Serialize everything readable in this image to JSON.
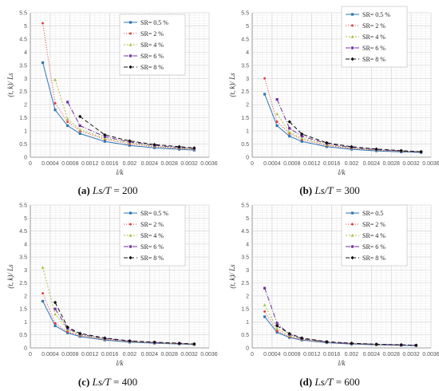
{
  "chart_data": [
    {
      "type": "line",
      "title": "",
      "caption": {
        "label": "(a)",
        "var": "Ls/T",
        "value": "= 200"
      },
      "xlabel": "l/k",
      "ylabel": "(t, k)/ Ls",
      "xlim": [
        0,
        0.0036
      ],
      "ylim": [
        0,
        5.5
      ],
      "xticks": [
        "0",
        "0.0004",
        "0.0008",
        "0.0012",
        "0.0016",
        "0.002",
        "0.0024",
        "0.0028",
        "0.0032",
        "0.0036"
      ],
      "yticks": [
        "0",
        "0.5",
        "1",
        "1.5",
        "2",
        "2.5",
        "3",
        "3.5",
        "4",
        "4.5",
        "5",
        "5.5"
      ],
      "series": [
        {
          "name": "SR= 0.5 %",
          "color": "#2e75b6",
          "dash": "",
          "marker": "square",
          "x": [
            0.00025,
            0.0005,
            0.00075,
            0.001,
            0.0015,
            0.002,
            0.0025,
            0.003,
            0.0033
          ],
          "y": [
            3.6,
            1.8,
            1.2,
            0.9,
            0.6,
            0.45,
            0.36,
            0.3,
            0.27
          ]
        },
        {
          "name": "SR= 2 %",
          "color": "#e04040",
          "dash": "1,2",
          "marker": "dot",
          "x": [
            0.00025,
            0.0005,
            0.00075,
            0.001,
            0.0015,
            0.002,
            0.0025,
            0.003,
            0.0033
          ],
          "y": [
            5.1,
            2.05,
            1.35,
            1.0,
            0.68,
            0.5,
            0.4,
            0.33,
            0.3
          ]
        },
        {
          "name": "SR= 4 %",
          "color": "#a6c23e",
          "dash": "2,2",
          "marker": "triangle",
          "x": [
            0.0005,
            0.00075,
            0.001,
            0.0015,
            0.002,
            0.0025,
            0.003,
            0.0033
          ],
          "y": [
            2.95,
            1.45,
            1.05,
            0.72,
            0.55,
            0.42,
            0.35,
            0.32
          ]
        },
        {
          "name": "SR= 6 %",
          "color": "#7030a0",
          "dash": "6,2,1,2",
          "marker": "square",
          "x": [
            0.00075,
            0.001,
            0.0015,
            0.002,
            0.0025,
            0.003,
            0.0033
          ],
          "y": [
            2.1,
            1.2,
            0.78,
            0.58,
            0.45,
            0.37,
            0.33
          ]
        },
        {
          "name": "SR= 8 %",
          "color": "#111111",
          "dash": "5,3",
          "marker": "diamond",
          "x": [
            0.001,
            0.0015,
            0.002,
            0.0025,
            0.003,
            0.0033
          ],
          "y": [
            1.55,
            0.85,
            0.62,
            0.48,
            0.4,
            0.35
          ]
        }
      ]
    },
    {
      "type": "line",
      "title": "",
      "caption": {
        "label": "(b)",
        "var": "Ls/T",
        "value": "= 300"
      },
      "xlabel": "l/k",
      "ylabel": "(t, k)/ Ls",
      "xlim": [
        0,
        0.0036
      ],
      "ylim": [
        0,
        5.5
      ],
      "xticks": [
        "0",
        "0.0004",
        "0.0008",
        "0.0012",
        "0.0016",
        "0.002",
        "0.0024",
        "0.0028",
        "0.0032",
        "0.0036"
      ],
      "yticks": [
        "0",
        "0.5",
        "1",
        "1.5",
        "2",
        "2.5",
        "3",
        "3.5",
        "4",
        "4.5",
        "5",
        "5.5"
      ],
      "series": [
        {
          "name": "SR= 0.5 %",
          "color": "#2e75b6",
          "dash": "",
          "marker": "square",
          "x": [
            0.00025,
            0.0005,
            0.00075,
            0.001,
            0.0015,
            0.002,
            0.0025,
            0.003,
            0.0034
          ],
          "y": [
            2.4,
            1.2,
            0.8,
            0.6,
            0.4,
            0.3,
            0.24,
            0.2,
            0.18
          ]
        },
        {
          "name": "SR= 2 %",
          "color": "#e04040",
          "dash": "1,2",
          "marker": "dot",
          "x": [
            0.00025,
            0.0005,
            0.00075,
            0.001,
            0.0015,
            0.002,
            0.0025,
            0.003,
            0.0034
          ],
          "y": [
            3.0,
            1.35,
            0.9,
            0.67,
            0.45,
            0.33,
            0.27,
            0.22,
            0.19
          ]
        },
        {
          "name": "SR= 4 %",
          "color": "#a6c23e",
          "dash": "2,2",
          "marker": "triangle",
          "x": [
            0.0005,
            0.00075,
            0.001,
            0.0015,
            0.002,
            0.0025,
            0.003,
            0.0034
          ],
          "y": [
            1.65,
            0.95,
            0.72,
            0.48,
            0.35,
            0.28,
            0.23,
            0.2
          ]
        },
        {
          "name": "SR= 6 %",
          "color": "#7030a0",
          "dash": "6,2,1,2",
          "marker": "square",
          "x": [
            0.0005,
            0.00075,
            0.001,
            0.0015,
            0.002,
            0.0025,
            0.003,
            0.0034
          ],
          "y": [
            2.2,
            1.1,
            0.8,
            0.52,
            0.37,
            0.29,
            0.24,
            0.2
          ]
        },
        {
          "name": "SR= 8 %",
          "color": "#111111",
          "dash": "5,3",
          "marker": "diamond",
          "x": [
            0.00075,
            0.001,
            0.0015,
            0.002,
            0.0025,
            0.003,
            0.0034
          ],
          "y": [
            1.35,
            0.88,
            0.55,
            0.4,
            0.31,
            0.25,
            0.21
          ]
        }
      ]
    },
    {
      "type": "line",
      "title": "",
      "caption": {
        "label": "(c)",
        "var": "Ls/T",
        "value": "= 400"
      },
      "xlabel": "l/k",
      "ylabel": "(t, k)/ Ls",
      "xlim": [
        0,
        0.0036
      ],
      "ylim": [
        0,
        5.5
      ],
      "xticks": [
        "0",
        "0.0004",
        "0.0008",
        "0.0012",
        "0.0016",
        "0.002",
        "0.0024",
        "0.0028",
        "0.0032",
        "0.0036"
      ],
      "yticks": [
        "0",
        "0.5",
        "1",
        "1.5",
        "2",
        "2.5",
        "3",
        "3.5",
        "4",
        "4.5",
        "5",
        "5.5"
      ],
      "series": [
        {
          "name": "SR= 0.5 %",
          "color": "#2e75b6",
          "dash": "",
          "marker": "square",
          "x": [
            0.00025,
            0.0005,
            0.00075,
            0.001,
            0.0015,
            0.002,
            0.0025,
            0.003,
            0.0033
          ],
          "y": [
            1.8,
            0.85,
            0.58,
            0.44,
            0.3,
            0.22,
            0.18,
            0.15,
            0.13
          ]
        },
        {
          "name": "SR= 2 %",
          "color": "#e04040",
          "dash": "1,2",
          "marker": "dot",
          "x": [
            0.00025,
            0.0005,
            0.00075,
            0.001,
            0.0015,
            0.002,
            0.0025,
            0.003,
            0.0033
          ],
          "y": [
            2.1,
            0.95,
            0.62,
            0.47,
            0.32,
            0.24,
            0.19,
            0.16,
            0.14
          ]
        },
        {
          "name": "SR= 4 %",
          "color": "#a6c23e",
          "dash": "2,2",
          "marker": "triangle",
          "x": [
            0.00025,
            0.0005,
            0.00075,
            0.001,
            0.0015,
            0.002,
            0.0025,
            0.003,
            0.0033
          ],
          "y": [
            3.1,
            1.3,
            0.7,
            0.5,
            0.34,
            0.25,
            0.2,
            0.16,
            0.14
          ]
        },
        {
          "name": "SR= 6 %",
          "color": "#7030a0",
          "dash": "6,2,1,2",
          "marker": "square",
          "x": [
            0.0005,
            0.00075,
            0.001,
            0.0015,
            0.002,
            0.0025,
            0.003,
            0.0033
          ],
          "y": [
            1.5,
            0.75,
            0.53,
            0.36,
            0.26,
            0.21,
            0.17,
            0.15
          ]
        },
        {
          "name": "SR= 8 %",
          "color": "#111111",
          "dash": "5,3",
          "marker": "diamond",
          "x": [
            0.0005,
            0.00075,
            0.001,
            0.0015,
            0.002,
            0.0025,
            0.003,
            0.0033
          ],
          "y": [
            1.75,
            0.8,
            0.56,
            0.38,
            0.27,
            0.22,
            0.18,
            0.15
          ]
        }
      ]
    },
    {
      "type": "line",
      "title": "",
      "caption": {
        "label": "(d)",
        "var": "Ls/T",
        "value": "= 600"
      },
      "xlabel": "l/k",
      "ylabel": "(t, k)/ Ls",
      "xlim": [
        0,
        0.0036
      ],
      "ylim": [
        0,
        5.5
      ],
      "xticks": [
        "0",
        "0.0004",
        "0.0008",
        "0.0012",
        "0.0016",
        "0.002",
        "0.0024",
        "0.0028",
        "0.0032",
        "0.0036"
      ],
      "yticks": [
        "0",
        "0.5",
        "1",
        "1.5",
        "2",
        "2.5",
        "3",
        "3.5",
        "4",
        "4.5",
        "5",
        "5.5"
      ],
      "series": [
        {
          "name": "SR= 0.5",
          "color": "#2e75b6",
          "dash": "",
          "marker": "square",
          "x": [
            0.00025,
            0.0005,
            0.00075,
            0.001,
            0.0015,
            0.002,
            0.0025,
            0.003,
            0.0033
          ],
          "y": [
            1.2,
            0.6,
            0.4,
            0.3,
            0.2,
            0.15,
            0.12,
            0.1,
            0.09
          ]
        },
        {
          "name": "SR= 2 %",
          "color": "#e04040",
          "dash": "1,2",
          "marker": "dot",
          "x": [
            0.00025,
            0.0005,
            0.00075,
            0.001,
            0.0015,
            0.002,
            0.0025,
            0.003,
            0.0033
          ],
          "y": [
            1.4,
            0.65,
            0.43,
            0.32,
            0.21,
            0.16,
            0.13,
            0.11,
            0.1
          ]
        },
        {
          "name": "SR= 4 %",
          "color": "#a6c23e",
          "dash": "2,2",
          "marker": "triangle",
          "x": [
            0.00025,
            0.0005,
            0.00075,
            0.001,
            0.0015,
            0.002,
            0.0025,
            0.003,
            0.0033
          ],
          "y": [
            1.65,
            0.75,
            0.47,
            0.34,
            0.22,
            0.17,
            0.13,
            0.11,
            0.1
          ]
        },
        {
          "name": "SR= 6 %",
          "color": "#7030a0",
          "dash": "6,2,1,2",
          "marker": "square",
          "x": [
            0.00025,
            0.0005,
            0.00075,
            0.001,
            0.0015,
            0.002,
            0.0025,
            0.003,
            0.0033
          ],
          "y": [
            2.3,
            0.95,
            0.52,
            0.36,
            0.23,
            0.17,
            0.14,
            0.11,
            0.1
          ]
        },
        {
          "name": "SR= 8 %",
          "color": "#111111",
          "dash": "5,3",
          "marker": "diamond",
          "x": [
            0.0005,
            0.00075,
            0.001,
            0.0015,
            0.002,
            0.0025,
            0.003,
            0.0033
          ],
          "y": [
            0.85,
            0.55,
            0.38,
            0.24,
            0.18,
            0.14,
            0.12,
            0.1
          ]
        }
      ]
    }
  ]
}
